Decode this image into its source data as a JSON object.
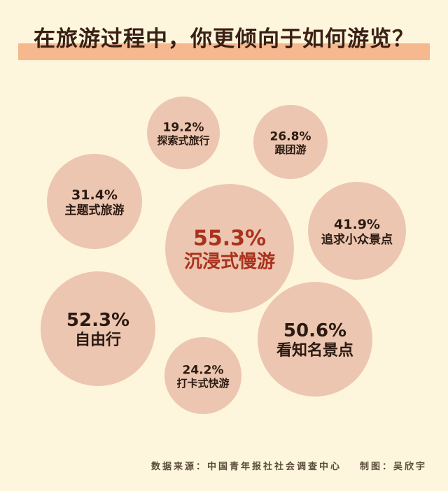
{
  "chart_data": {
    "type": "bubble",
    "title": "在旅游过程中，你更倾向于如何游览？",
    "categories": [
      "探索式旅行",
      "跟团游",
      "主题式旅游",
      "沉浸式慢游",
      "追求小众景点",
      "自由行",
      "看知名景点",
      "打卡式快游"
    ],
    "values": [
      19.2,
      26.8,
      31.4,
      55.3,
      41.9,
      52.3,
      50.6,
      24.2
    ],
    "labels": [
      "19.2%",
      "26.8%",
      "31.4%",
      "55.3%",
      "41.9%",
      "52.3%",
      "50.6%",
      "24.2%"
    ],
    "highlight": "沉浸式慢游"
  },
  "footer": {
    "source": "数据来源：中国青年报社社会调查中心",
    "credit": "制图：吴欣宇"
  },
  "colors": {
    "background": "#fdf6dc",
    "bubble": "#ecc6b0",
    "title_bar": "#f6b88e",
    "text": "#2b1a12",
    "highlight": "#a8321e"
  }
}
